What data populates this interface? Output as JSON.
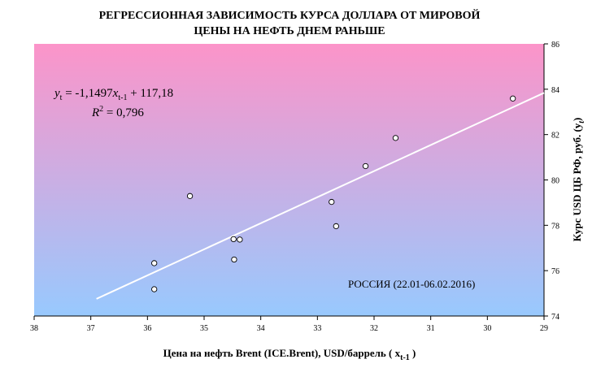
{
  "chart_data": {
    "type": "scatter",
    "title_line1": "РЕГРЕССИОННАЯ ЗАВИСИМОСТЬ КУРСА ДОЛЛАРА ОТ МИРОВОЙ",
    "title_line2": "ЦЕНЫ НА НЕФТЬ ДНЕМ РАНЬШЕ",
    "xlabel": "Цена на нефть Brent (ICE.Brent), USD/баррель ( x",
    "xlabel_sub": "t-1",
    "xlabel_end": " )",
    "ylabel": "Курс USD ЦБ РФ, руб. (y",
    "ylabel_sub": "t",
    "ylabel_end": ")",
    "xlim": [
      38,
      29
    ],
    "x_reversed": true,
    "ylim": [
      74,
      86
    ],
    "x_ticks": [
      38,
      37,
      36,
      35,
      34,
      33,
      32,
      31,
      30,
      29
    ],
    "y_ticks": [
      74,
      76,
      78,
      80,
      82,
      84,
      86
    ],
    "y_axis_side": "right",
    "points": [
      {
        "x": 35.88,
        "y": 76.33
      },
      {
        "x": 35.88,
        "y": 75.18
      },
      {
        "x": 35.25,
        "y": 79.29
      },
      {
        "x": 34.48,
        "y": 77.39
      },
      {
        "x": 34.37,
        "y": 77.37
      },
      {
        "x": 34.47,
        "y": 76.49
      },
      {
        "x": 32.75,
        "y": 79.03
      },
      {
        "x": 32.67,
        "y": 77.96
      },
      {
        "x": 32.15,
        "y": 80.61
      },
      {
        "x": 31.62,
        "y": 81.85
      },
      {
        "x": 29.55,
        "y": 83.59
      }
    ],
    "trendline": {
      "slope": -1.1497,
      "intercept": 117.18,
      "x_from": 36.9,
      "x_to": 29.0
    },
    "equation": {
      "y": "y",
      "y_sub": "t",
      "mid": " = -1,1497",
      "x": "x",
      "x_sub": "t-1",
      "end": " + 117,18"
    },
    "r2": {
      "label": "R",
      "sup": "2",
      "value": " = 0,796"
    },
    "annotation": "РОССИЯ (22.01-06.02.2016)",
    "colors": {
      "bg_top": "#fc94c9",
      "bg_bottom": "#98c9fe",
      "trend": "#ffffff",
      "marker_fill": "#ffffff",
      "marker_stroke": "#000000",
      "axis": "#000000"
    }
  }
}
